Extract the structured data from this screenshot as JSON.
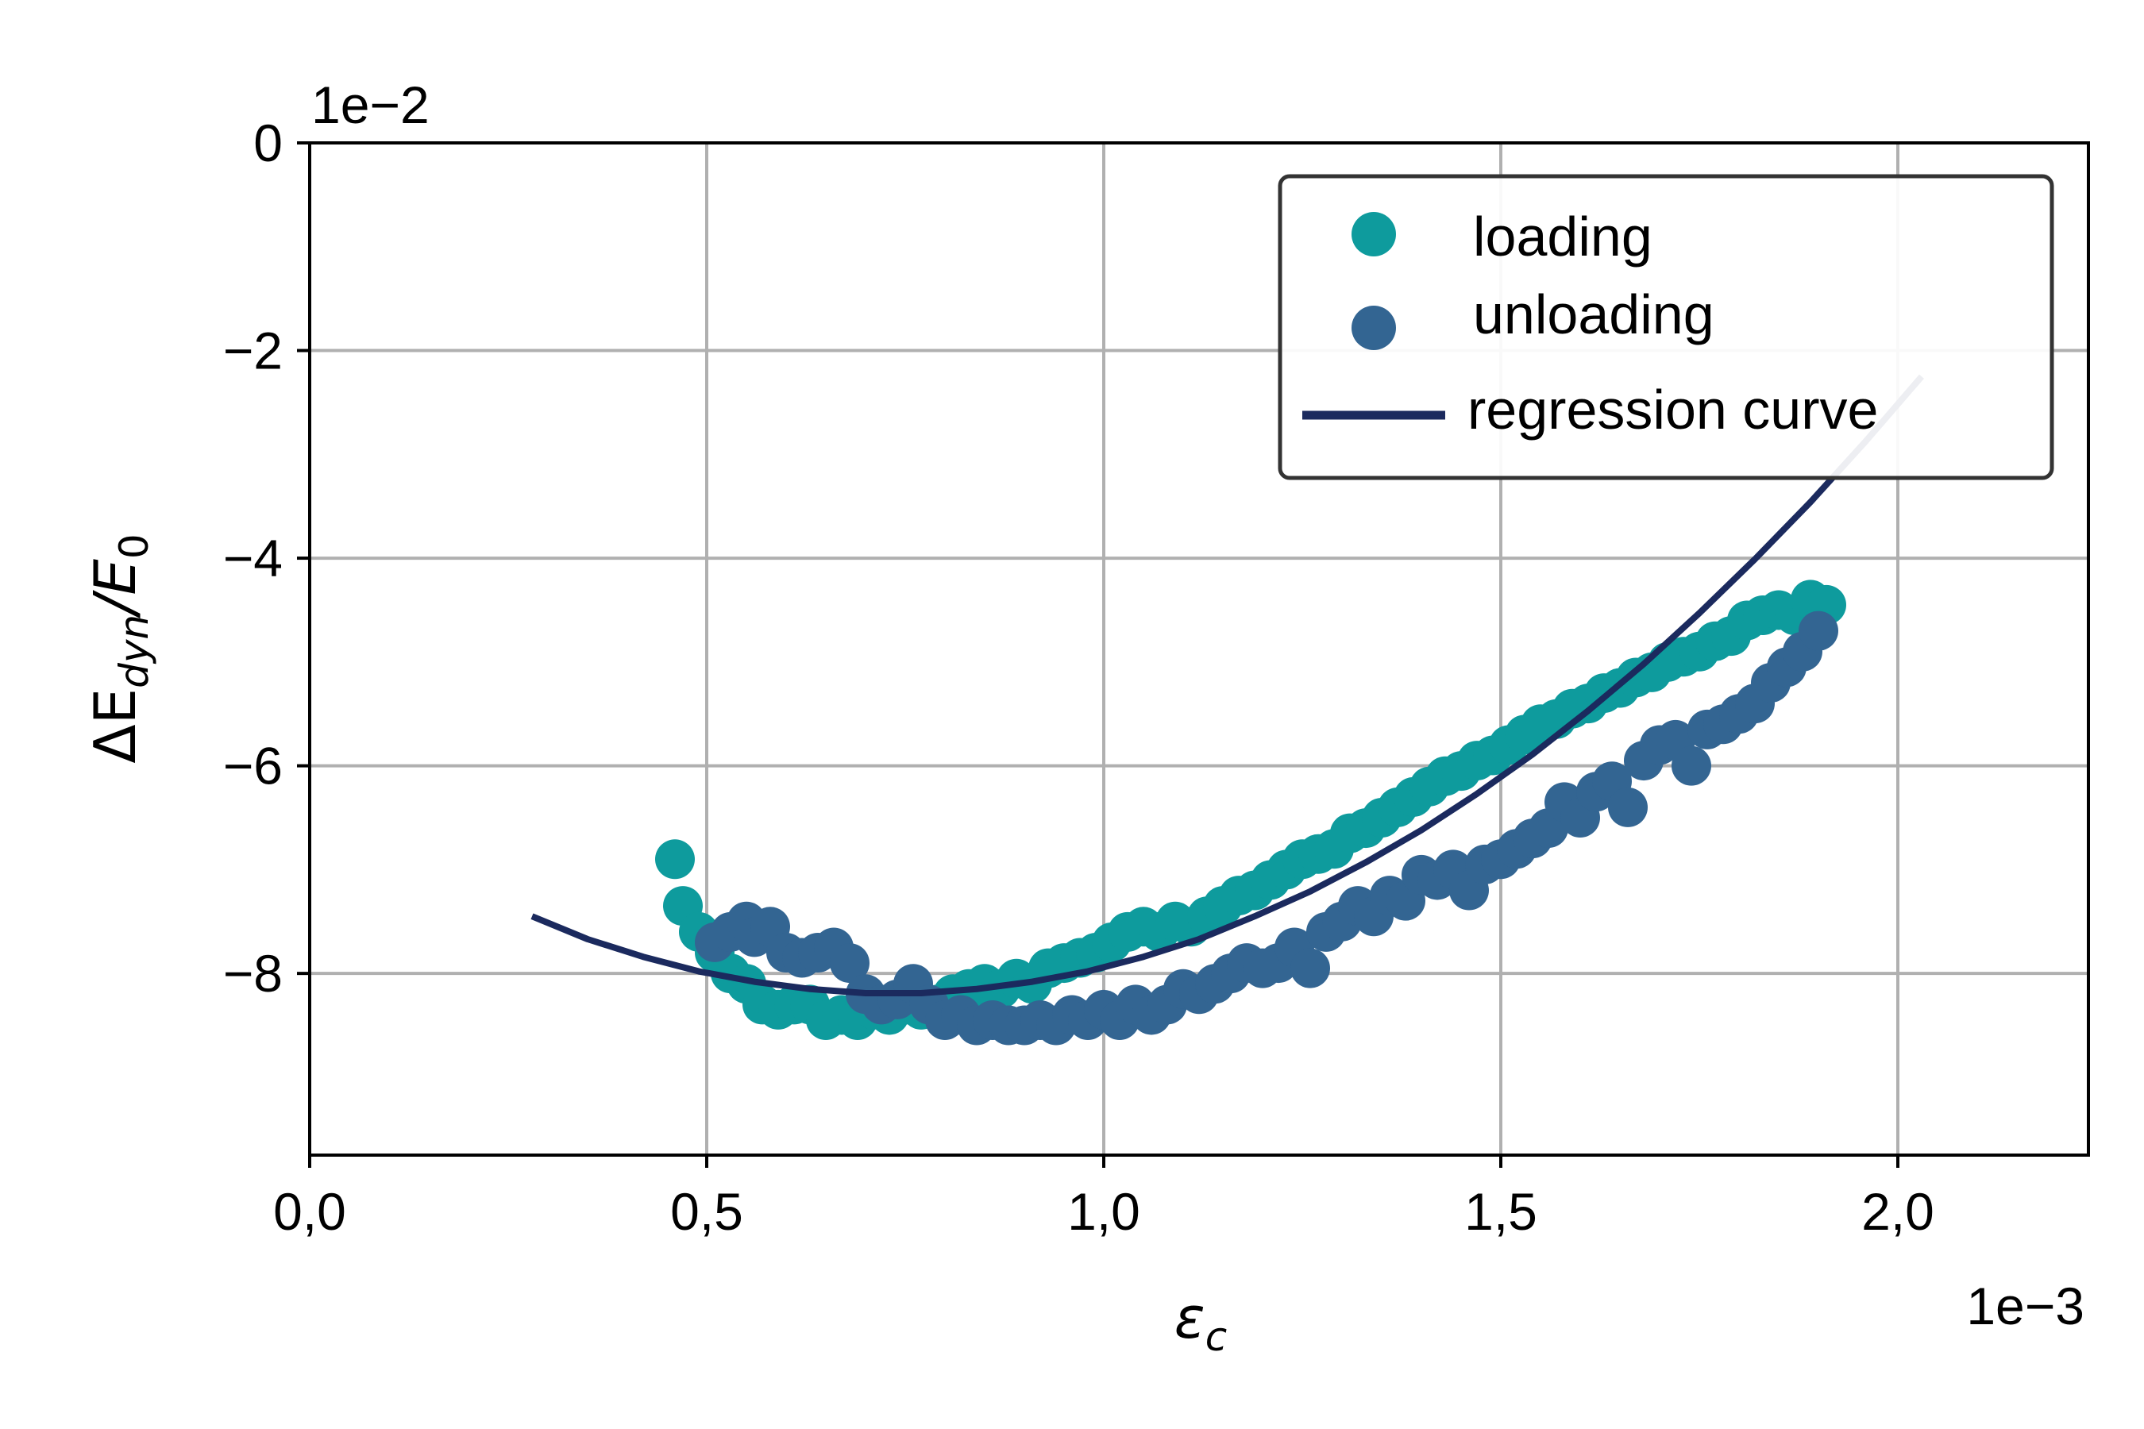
{
  "chart_data": {
    "type": "scatter",
    "xlabel_base": "ε",
    "xlabel_sub": "c",
    "ylabel_parts": [
      "ΔE",
      "dyn",
      "/E",
      "0"
    ],
    "x_multiplier": "1e−3",
    "y_multiplier": "1e−2",
    "xlim": [
      0.0,
      2.24
    ],
    "ylim": [
      -9.75,
      0.0
    ],
    "x_ticks": [
      0.0,
      0.5,
      1.0,
      1.5,
      2.0
    ],
    "x_tick_labels": [
      "0,0",
      "0,5",
      "1,0",
      "1,5",
      "2,0"
    ],
    "y_ticks": [
      0,
      -2,
      -4,
      -6,
      -8
    ],
    "y_tick_labels": [
      "0",
      "−2",
      "−4",
      "−6",
      "−8"
    ],
    "grid": true,
    "legend_position": "top-right",
    "colors": {
      "loading": "#0e9b9d",
      "unloading": "#336592",
      "regression": "#1b2a5e",
      "grid": "#b0b0b0"
    },
    "series": [
      {
        "name": "loading",
        "kind": "scatter",
        "x": [
          0.46,
          0.47,
          0.49,
          0.51,
          0.53,
          0.55,
          0.57,
          0.59,
          0.61,
          0.63,
          0.65,
          0.67,
          0.69,
          0.71,
          0.73,
          0.75,
          0.77,
          0.79,
          0.81,
          0.83,
          0.85,
          0.87,
          0.89,
          0.91,
          0.93,
          0.95,
          0.97,
          0.99,
          1.01,
          1.03,
          1.05,
          1.07,
          1.09,
          1.11,
          1.13,
          1.15,
          1.17,
          1.19,
          1.21,
          1.23,
          1.25,
          1.27,
          1.29,
          1.31,
          1.33,
          1.35,
          1.37,
          1.39,
          1.41,
          1.43,
          1.45,
          1.47,
          1.49,
          1.51,
          1.53,
          1.55,
          1.57,
          1.59,
          1.61,
          1.63,
          1.65,
          1.67,
          1.69,
          1.71,
          1.73,
          1.75,
          1.77,
          1.79,
          1.81,
          1.83,
          1.85,
          1.87,
          1.89,
          1.91
        ],
        "y": [
          -6.9,
          -7.35,
          -7.6,
          -7.8,
          -8.0,
          -8.1,
          -8.3,
          -8.35,
          -8.3,
          -8.3,
          -8.45,
          -8.4,
          -8.45,
          -8.35,
          -8.4,
          -8.3,
          -8.35,
          -8.3,
          -8.2,
          -8.15,
          -8.1,
          -8.15,
          -8.05,
          -8.1,
          -7.95,
          -7.9,
          -7.85,
          -7.8,
          -7.7,
          -7.6,
          -7.55,
          -7.6,
          -7.5,
          -7.55,
          -7.45,
          -7.35,
          -7.25,
          -7.2,
          -7.1,
          -7.0,
          -6.9,
          -6.85,
          -6.8,
          -6.65,
          -6.6,
          -6.5,
          -6.4,
          -6.3,
          -6.2,
          -6.1,
          -6.05,
          -5.95,
          -5.9,
          -5.8,
          -5.7,
          -5.6,
          -5.55,
          -5.45,
          -5.4,
          -5.3,
          -5.25,
          -5.15,
          -5.1,
          -5.0,
          -4.95,
          -4.9,
          -4.8,
          -4.75,
          -4.6,
          -4.55,
          -4.5,
          -4.55,
          -4.4,
          -4.45
        ]
      },
      {
        "name": "unloading",
        "kind": "scatter",
        "x": [
          0.51,
          0.53,
          0.55,
          0.56,
          0.58,
          0.6,
          0.62,
          0.64,
          0.66,
          0.68,
          0.7,
          0.72,
          0.74,
          0.76,
          0.78,
          0.8,
          0.82,
          0.84,
          0.86,
          0.88,
          0.9,
          0.92,
          0.94,
          0.96,
          0.98,
          1.0,
          1.02,
          1.04,
          1.06,
          1.08,
          1.1,
          1.12,
          1.14,
          1.16,
          1.18,
          1.2,
          1.22,
          1.24,
          1.26,
          1.28,
          1.3,
          1.32,
          1.34,
          1.36,
          1.38,
          1.4,
          1.42,
          1.44,
          1.46,
          1.48,
          1.5,
          1.52,
          1.54,
          1.56,
          1.58,
          1.6,
          1.62,
          1.64,
          1.66,
          1.68,
          1.7,
          1.72,
          1.74,
          1.76,
          1.78,
          1.8,
          1.82,
          1.84,
          1.86,
          1.88,
          1.9
        ],
        "y": [
          -7.7,
          -7.6,
          -7.5,
          -7.65,
          -7.55,
          -7.8,
          -7.85,
          -7.8,
          -7.75,
          -7.9,
          -8.2,
          -8.3,
          -8.25,
          -8.1,
          -8.3,
          -8.45,
          -8.4,
          -8.5,
          -8.45,
          -8.5,
          -8.5,
          -8.45,
          -8.5,
          -8.4,
          -8.45,
          -8.35,
          -8.45,
          -8.3,
          -8.4,
          -8.3,
          -8.15,
          -8.2,
          -8.1,
          -8.0,
          -7.9,
          -7.95,
          -7.9,
          -7.75,
          -7.95,
          -7.6,
          -7.5,
          -7.35,
          -7.45,
          -7.25,
          -7.3,
          -7.05,
          -7.1,
          -7.0,
          -7.2,
          -6.95,
          -6.9,
          -6.8,
          -6.7,
          -6.6,
          -6.35,
          -6.5,
          -6.25,
          -6.15,
          -6.4,
          -5.95,
          -5.8,
          -5.75,
          -6.0,
          -5.65,
          -5.6,
          -5.5,
          -5.4,
          -5.2,
          -5.05,
          -4.9,
          -4.7
        ]
      },
      {
        "name": "regression curve",
        "kind": "line",
        "x": [
          0.28,
          0.35,
          0.42,
          0.49,
          0.56,
          0.63,
          0.7,
          0.77,
          0.84,
          0.91,
          0.98,
          1.05,
          1.12,
          1.19,
          1.26,
          1.33,
          1.4,
          1.47,
          1.54,
          1.61,
          1.68,
          1.75,
          1.82,
          1.89,
          1.96,
          2.03
        ],
        "y": [
          -7.45,
          -7.67,
          -7.84,
          -7.98,
          -8.08,
          -8.15,
          -8.19,
          -8.19,
          -8.15,
          -8.08,
          -7.98,
          -7.84,
          -7.67,
          -7.45,
          -7.21,
          -6.93,
          -6.62,
          -6.27,
          -5.89,
          -5.47,
          -5.02,
          -4.53,
          -4.01,
          -3.46,
          -2.87,
          -2.25
        ]
      }
    ]
  }
}
